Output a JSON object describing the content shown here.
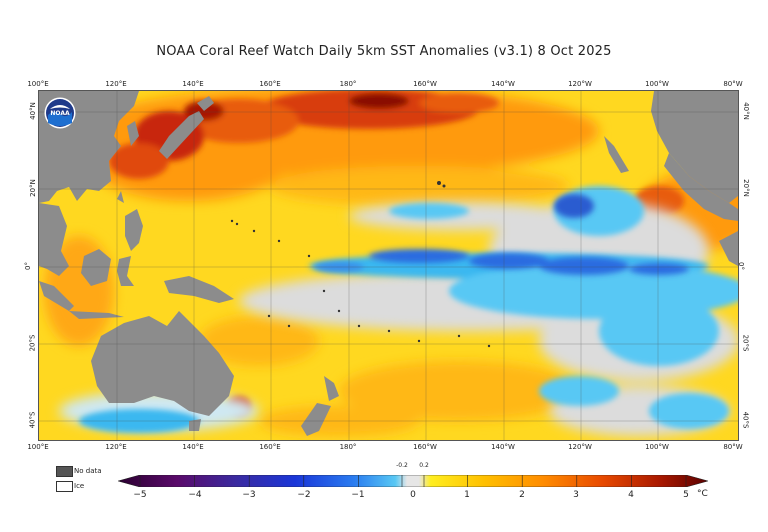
{
  "title": "NOAA Coral Reef Watch Daily 5km SST Anomalies  (v3.1)   8 Oct 2025",
  "logo": {
    "name": "noaa-logo",
    "text": "NOAA"
  },
  "axes": {
    "top_ticks": [
      "100°E",
      "120°E",
      "140°E",
      "160°E",
      "180°",
      "160°W",
      "140°W",
      "120°W",
      "100°W",
      "80°W"
    ],
    "bottom_ticks": [
      "100°E",
      "120°E",
      "140°E",
      "160°E",
      "180°",
      "160°W",
      "140°W",
      "120°W",
      "100°W",
      "80°W"
    ],
    "left_ticks": [
      "40°N",
      "20°N",
      "0°",
      "20°S",
      "40°S"
    ],
    "right_ticks": [
      "40°N",
      "20°N",
      "0°",
      "20°S",
      "40°S"
    ]
  },
  "legend": {
    "no_data": {
      "label": "No data",
      "color": "#555555"
    },
    "ice": {
      "label": "Ice",
      "color": "#ffffff"
    }
  },
  "colorbar": {
    "unit": "°C",
    "labels": [
      "−5",
      "−4",
      "−3",
      "−2",
      "−1",
      "0",
      "1",
      "2",
      "3",
      "4",
      "5"
    ],
    "small_labels": [
      "-0.2",
      "0.2"
    ],
    "colors": [
      "#2a0030",
      "#5a0a6a",
      "#3a2aa0",
      "#1a36d8",
      "#2a7cf0",
      "#58c8f4",
      "#e6e6e6",
      "#ffee20",
      "#ffc000",
      "#ff8c00",
      "#e84a00",
      "#a81800",
      "#5a0000"
    ]
  },
  "map": {
    "land_color": "#8c8c8c",
    "region_colors": {
      "warm_yellow": "#ffd820",
      "orange": "#ff9a10",
      "deep_orange": "#e85c10",
      "red": "#b81a00",
      "neutral": "#dcdcdc",
      "cool": "#3ab8f0",
      "cold": "#2a6ce0"
    }
  }
}
